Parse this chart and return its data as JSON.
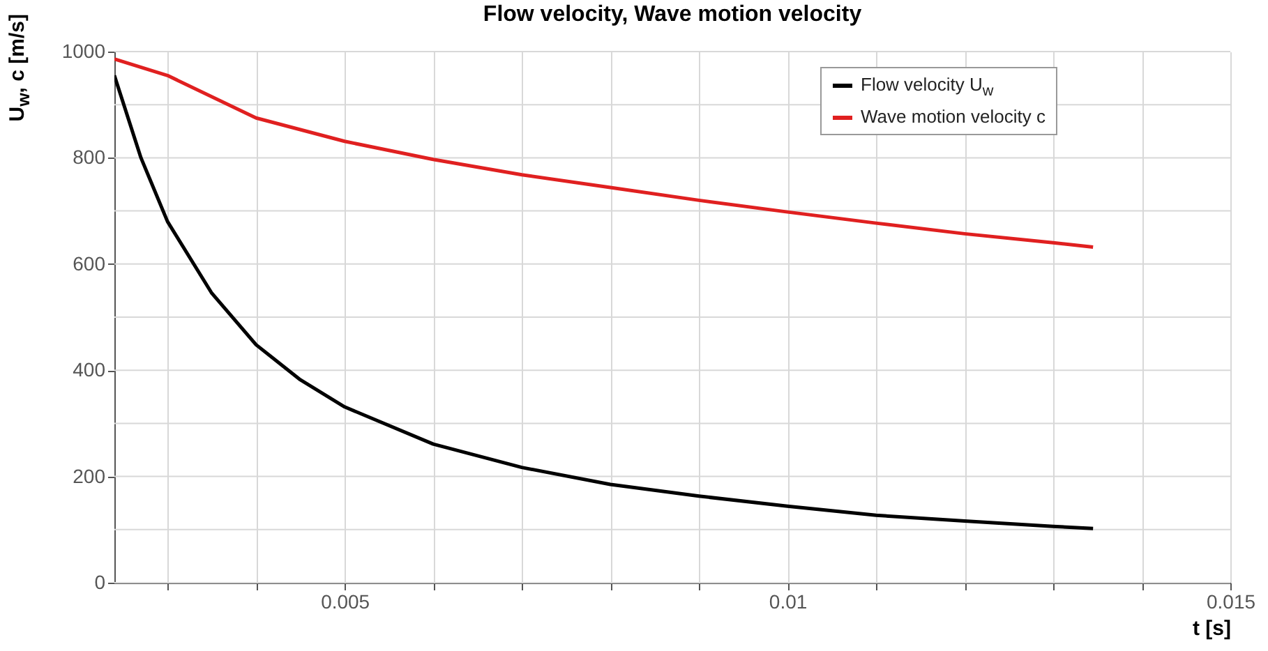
{
  "chart_data": {
    "type": "line",
    "title": "Flow velocity, Wave motion velocity",
    "xlabel": "t [s]",
    "ylabel": "U$_{w}$, c [m/s]",
    "xlim": [
      0.0024,
      0.015
    ],
    "xticks": [
      {
        "value": 0.003,
        "label": null
      },
      {
        "value": 0.004,
        "label": null
      },
      0.005,
      {
        "value": 0.006,
        "label": null
      },
      {
        "value": 0.007,
        "label": null
      },
      {
        "value": 0.008,
        "label": null
      },
      {
        "value": 0.009,
        "label": null
      },
      0.01,
      {
        "value": 0.011,
        "label": null
      },
      {
        "value": 0.012,
        "label": null
      },
      {
        "value": 0.013,
        "label": null
      },
      {
        "value": 0.014,
        "label": null
      },
      0.015
    ],
    "ylim": [
      0,
      1000
    ],
    "yticks": [
      0,
      {
        "value": 100,
        "label": null
      },
      200,
      {
        "value": 300,
        "label": null
      },
      400,
      {
        "value": 500,
        "label": null
      },
      600,
      {
        "value": 700,
        "label": null
      },
      800,
      {
        "value": 900,
        "label": null
      },
      1000
    ],
    "grid": true,
    "legend": "top right",
    "line_style": "solid",
    "series": [
      {
        "name": "Flow velocity U$_{w}$",
        "color": "#000000",
        "x": [
          0.0024,
          0.0027,
          0.003,
          0.0035,
          0.004,
          0.0045,
          0.005,
          0.006,
          0.007,
          0.008,
          0.009,
          0.01,
          0.011,
          0.012,
          0.013,
          0.01345
        ],
        "values": [
          955,
          800,
          680,
          545,
          448,
          382,
          331,
          261,
          217,
          185,
          163,
          144,
          127,
          116,
          106,
          102
        ]
      },
      {
        "name": "Wave motion velocity c",
        "color": "#e02020",
        "x": [
          0.0024,
          0.003,
          0.004,
          0.005,
          0.006,
          0.007,
          0.008,
          0.009,
          0.01,
          0.011,
          0.012,
          0.013,
          0.01345
        ],
        "values": [
          986,
          955,
          875,
          831,
          797,
          768,
          744,
          720,
          698,
          677,
          657,
          640,
          632
        ]
      }
    ]
  }
}
